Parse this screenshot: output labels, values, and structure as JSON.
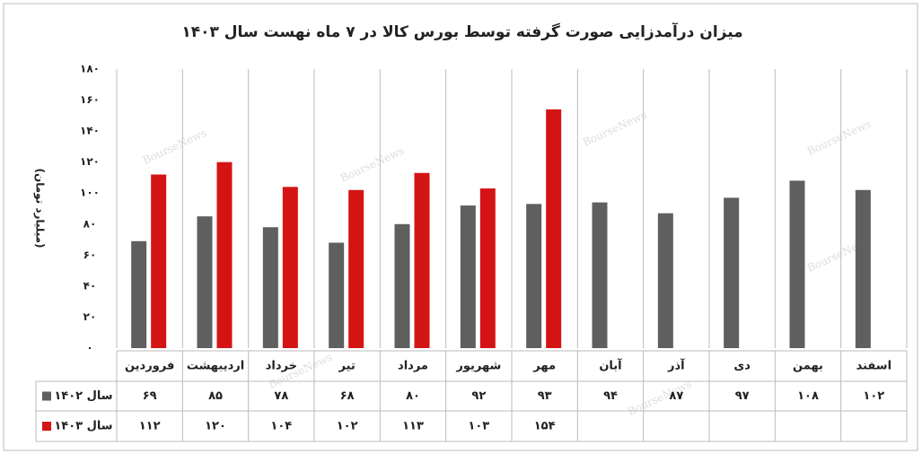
{
  "chart_data": {
    "type": "bar",
    "title": "میزان درآمدزایی صورت گرفته توسط بورس کالا در ۷ ماه نهست سال ۱۴۰۳",
    "y_label": "(میلیارد تومان)",
    "watermark": "BourseNews",
    "categories": [
      "فروردین",
      "اردیبهشت",
      "خرداد",
      "تیر",
      "مرداد",
      "شهریور",
      "مهر",
      "آبان",
      "آذر",
      "دی",
      "بهمن",
      "اسفند"
    ],
    "series": [
      {
        "name": "سال ۱۴۰۲",
        "color": "#5f5f5f",
        "values": [
          69,
          85,
          78,
          68,
          80,
          92,
          93,
          94,
          87,
          97,
          108,
          102
        ],
        "value_labels": [
          "۶۹",
          "۸۵",
          "۷۸",
          "۶۸",
          "۸۰",
          "۹۲",
          "۹۳",
          "۹۴",
          "۸۷",
          "۹۷",
          "۱۰۸",
          "۱۰۲"
        ]
      },
      {
        "name": "سال ۱۴۰۳",
        "color": "#d41414",
        "values": [
          112,
          120,
          104,
          102,
          113,
          103,
          154,
          null,
          null,
          null,
          null,
          null
        ],
        "value_labels": [
          "۱۱۲",
          "۱۲۰",
          "۱۰۴",
          "۱۰۲",
          "۱۱۳",
          "۱۰۳",
          "۱۵۴",
          null,
          null,
          null,
          null,
          null
        ]
      }
    ],
    "ylim": [
      0,
      180
    ],
    "yticks": [
      {
        "value": 0,
        "label": "۰"
      },
      {
        "value": 20,
        "label": "۲۰"
      },
      {
        "value": 40,
        "label": "۴۰"
      },
      {
        "value": 60,
        "label": "۶۰"
      },
      {
        "value": 80,
        "label": "۸۰"
      },
      {
        "value": 100,
        "label": "۱۰۰"
      },
      {
        "value": 120,
        "label": "۱۲۰"
      },
      {
        "value": 140,
        "label": "۱۴۰"
      },
      {
        "value": 160,
        "label": "۱۶۰"
      },
      {
        "value": 180,
        "label": "۱۸۰"
      }
    ],
    "grid": true
  }
}
